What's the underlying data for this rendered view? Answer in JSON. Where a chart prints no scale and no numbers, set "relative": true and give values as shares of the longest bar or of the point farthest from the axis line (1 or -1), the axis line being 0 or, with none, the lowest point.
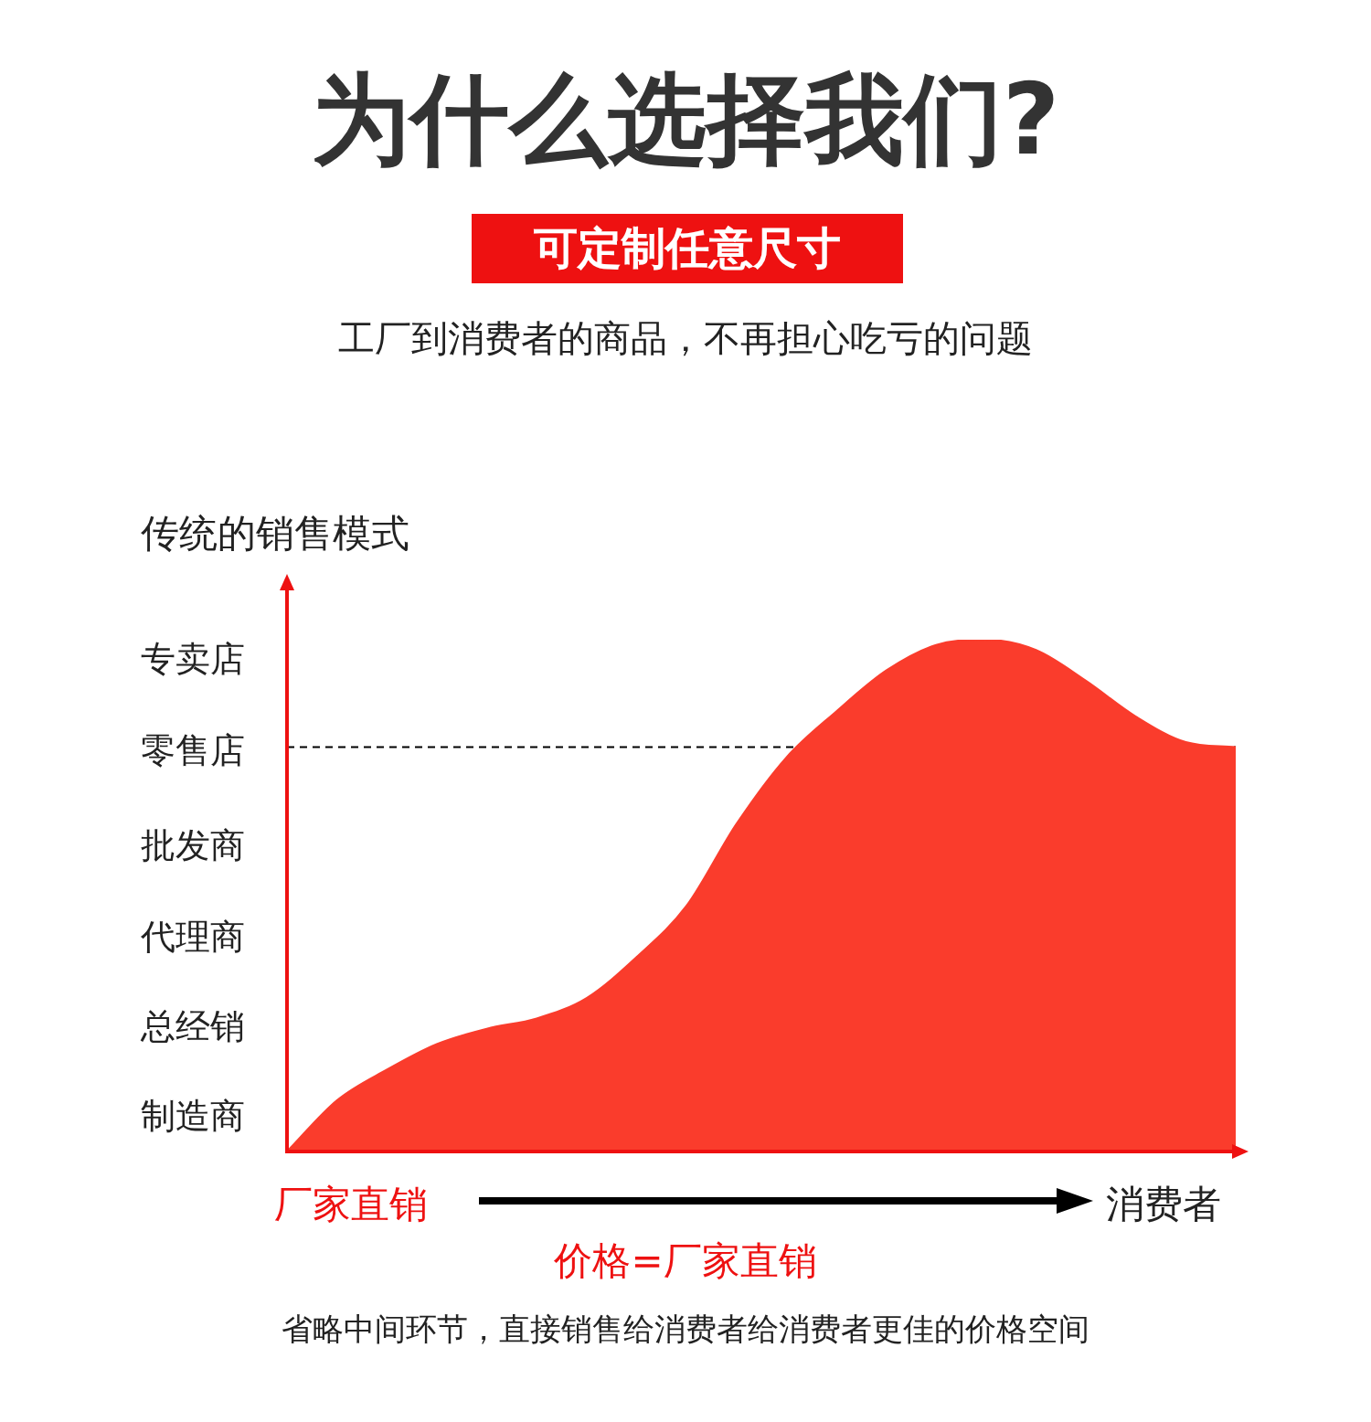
{
  "chart_data": {
    "type": "area",
    "title": "为什么选择我们?",
    "subtitle": "可定制任意尺寸",
    "ylabel": "传统的销售模式",
    "relative": true,
    "categories": [
      null,
      null,
      null,
      null,
      null,
      null,
      null,
      null,
      null,
      null,
      null,
      null,
      null,
      null,
      null,
      null,
      null,
      null,
      null,
      null
    ],
    "series": [
      {
        "color": "#fa3c2c",
        "values": [
          0,
          0.1,
          0.16,
          0.21,
          0.24,
          0.26,
          0.3,
          0.38,
          0.48,
          0.64,
          0.77,
          0.86,
          0.94,
          0.99,
          1,
          0.98,
          0.92,
          0.85,
          0.8,
          0.79
        ]
      }
    ],
    "ref_lines": [
      {
        "axis": "y",
        "value": 0.79,
        "color": "#000000",
        "line_style": "dashed"
      }
    ],
    "annotations": [
      "工厂到消费者的商品，不再担心吃亏的问题",
      "专卖店",
      "零售店",
      "批发商",
      "代理商",
      "总经销",
      "制造商",
      "厂家直销",
      "消费者",
      "价格=厂家直销",
      "省略中间环节，直接销售给消费者给消费者更佳的价格空间"
    ],
    "legend": false
  }
}
